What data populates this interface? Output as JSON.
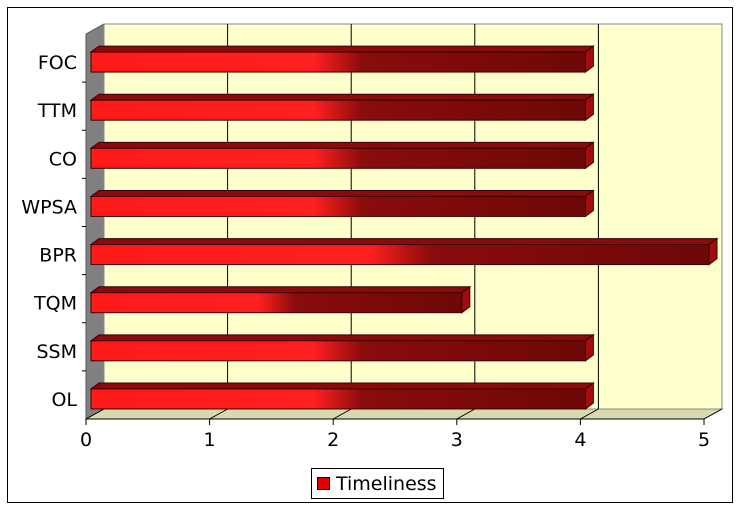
{
  "chart_data": {
    "type": "bar",
    "orientation": "horizontal",
    "style": "3d",
    "categories": [
      "FOC",
      "TTM",
      "CO",
      "WPSA",
      "BPR",
      "TQM",
      "SSM",
      "OL"
    ],
    "series": [
      {
        "name": "Timeliness",
        "values": [
          4,
          4,
          4,
          4,
          5,
          3,
          4,
          4
        ]
      }
    ],
    "xlim": [
      0,
      5
    ],
    "x_ticks": [
      "0",
      "1",
      "2",
      "3",
      "4",
      "5"
    ],
    "grid": true,
    "legend": "bottom",
    "colors": {
      "bar": "#ff1a1a",
      "bar_dark": "#7a0a0a",
      "plot_wall": "#ffffcc",
      "side_wall": "#808080"
    }
  }
}
